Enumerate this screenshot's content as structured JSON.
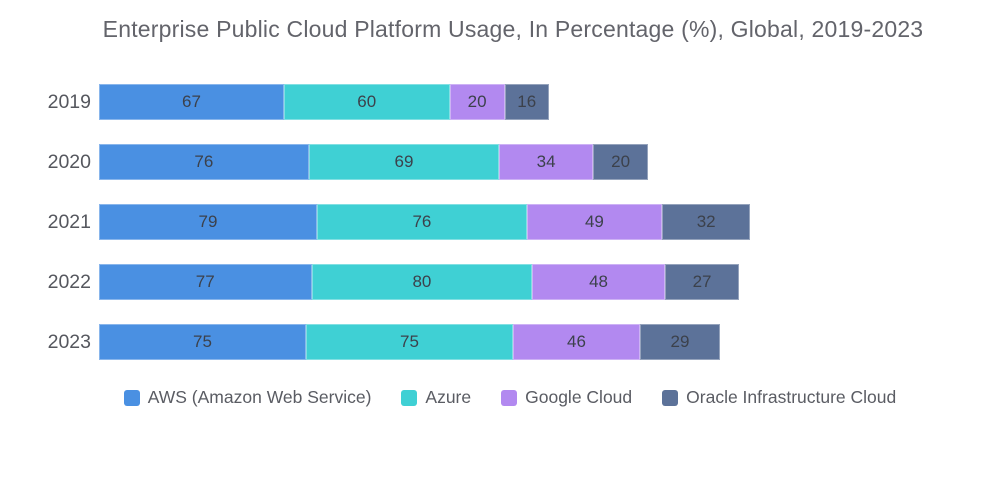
{
  "title": "Enterprise Public Cloud Platform Usage, In Percentage (%), Global, 2019-2023",
  "chart_data": {
    "type": "bar",
    "orientation": "horizontal",
    "stacked": true,
    "title": "Enterprise Public Cloud Platform Usage, In Percentage (%), Global, 2019-2023",
    "categories": [
      "2019",
      "2020",
      "2021",
      "2022",
      "2023"
    ],
    "series": [
      {
        "name": "AWS (Amazon Web Service)",
        "color": "#4A90E2",
        "values": [
          67,
          76,
          79,
          77,
          75
        ]
      },
      {
        "name": "Azure",
        "color": "#3FD0D4",
        "values": [
          60,
          69,
          76,
          80,
          75
        ]
      },
      {
        "name": "Google Cloud",
        "color": "#B289F0",
        "values": [
          20,
          34,
          49,
          48,
          46
        ]
      },
      {
        "name": "Oracle Infrastructure Cloud",
        "color": "#5C7299",
        "values": [
          16,
          20,
          32,
          27,
          29
        ]
      }
    ],
    "value_labels": true,
    "legend_position": "bottom",
    "xlim": [
      0,
      236
    ],
    "grid": false
  }
}
